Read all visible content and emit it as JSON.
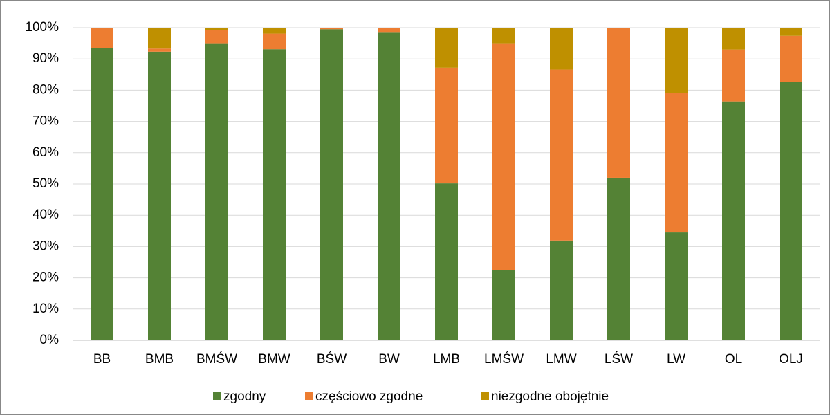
{
  "chart_data": {
    "type": "stacked_bar",
    "categories": [
      "BB",
      "BMB",
      "BMŚW",
      "BMW",
      "BŚW",
      "BW",
      "LMB",
      "LMŚW",
      "LMW",
      "LŚW",
      "LW",
      "OL",
      "OLJ"
    ],
    "series": [
      {
        "name": "zgodny",
        "color": "#548235",
        "values": [
          93.4,
          92.3,
          95,
          93.1,
          99.5,
          98.6,
          50.2,
          22.5,
          31.9,
          52,
          34.5,
          76.4,
          82.6
        ]
      },
      {
        "name": "częściowo zgodne",
        "color": "#ed7d31",
        "values": [
          6.6,
          1,
          4.2,
          5,
          0.5,
          1.4,
          37,
          72.5,
          54.7,
          48,
          44.5,
          16.6,
          14.8
        ]
      },
      {
        "name": "niezgodne obojętnie",
        "color": "#bf9000",
        "values": [
          0,
          6.7,
          0.8,
          1.9,
          0,
          0,
          12.8,
          5,
          13.4,
          0,
          21,
          7,
          2.6
        ]
      }
    ],
    "ylim": [
      0,
      100
    ],
    "yticks": [
      {
        "value": 0,
        "label": "0%"
      },
      {
        "value": 10,
        "label": "10%"
      },
      {
        "value": 20,
        "label": "20%"
      },
      {
        "value": 30,
        "label": "30%"
      },
      {
        "value": 40,
        "label": "40%"
      },
      {
        "value": 50,
        "label": "50%"
      },
      {
        "value": 60,
        "label": "60%"
      },
      {
        "value": 70,
        "label": "70%"
      },
      {
        "value": 80,
        "label": "80%"
      },
      {
        "value": 90,
        "label": "90%"
      },
      {
        "value": 100,
        "label": "100%"
      }
    ],
    "grid": true,
    "legend": "bottom"
  }
}
